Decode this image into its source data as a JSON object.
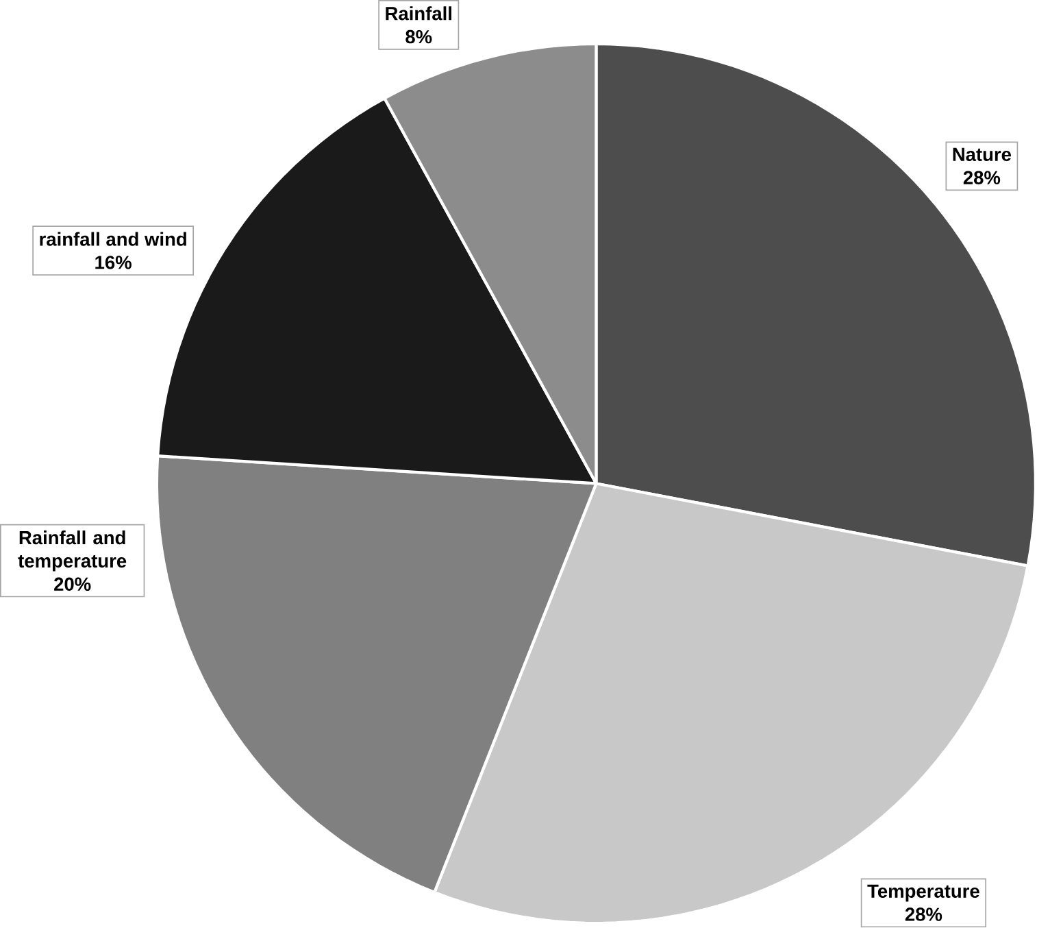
{
  "chart_data": {
    "type": "pie",
    "categories": [
      "Nature",
      "Temperature",
      "Rainfall and temperature",
      "rainfall and wind",
      "Rainfall"
    ],
    "values": [
      28,
      28,
      20,
      16,
      8
    ],
    "value_labels": [
      "28%",
      "28%",
      "20%",
      "16%",
      "8%"
    ],
    "colors": [
      "#4d4d4d",
      "#c8c8c8",
      "#808080",
      "#1a1a1a",
      "#8c8c8c"
    ]
  }
}
